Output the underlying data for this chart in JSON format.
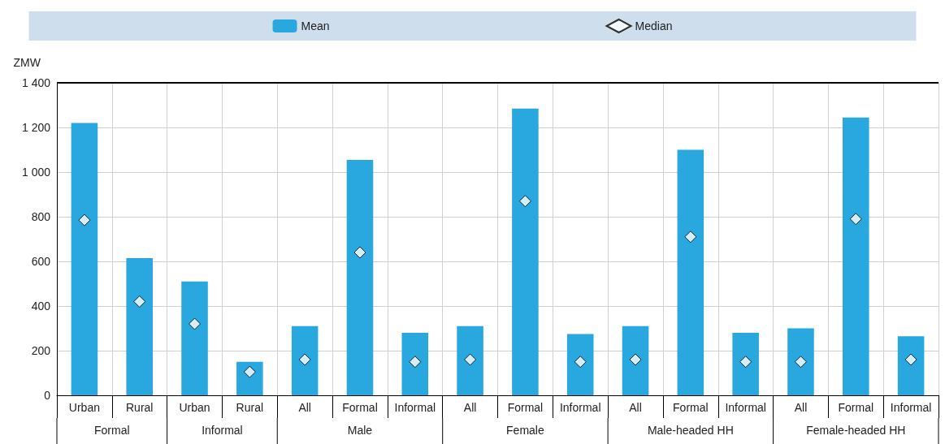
{
  "chart_data": {
    "type": "bar",
    "ylabel": "ZMW",
    "categories": [
      "Urban",
      "Rural",
      "Urban",
      "Rural",
      "All",
      "Formal",
      "Informal",
      "All",
      "Formal",
      "Informal",
      "All",
      "Formal",
      "Informal",
      "All",
      "Formal",
      "Informal"
    ],
    "annotations": [
      "Formal",
      "Informal",
      "Male",
      "Female",
      "Male-headed HH",
      "Female-headed HH"
    ],
    "series": [
      {
        "name": "Mean",
        "color": "#29a8e0",
        "values": [
          1220,
          615,
          510,
          150,
          310,
          1055,
          280,
          310,
          1285,
          275,
          310,
          1100,
          280,
          300,
          1245,
          265
        ]
      },
      {
        "name": "Median",
        "type": "scatter",
        "color": "#ffffff",
        "marker": "diamond",
        "values": [
          785,
          420,
          320,
          105,
          160,
          640,
          150,
          160,
          870,
          150,
          160,
          710,
          150,
          150,
          790,
          160
        ]
      }
    ],
    "ylim": [
      0,
      1400
    ],
    "yticks": [
      0,
      200,
      400,
      600,
      800,
      {
        "value": 1000,
        "label": "1 000"
      },
      {
        "value": 1200,
        "label": "1 200"
      },
      {
        "value": 1400,
        "label": "1 400"
      }
    ],
    "grid": true,
    "legend": "top"
  }
}
